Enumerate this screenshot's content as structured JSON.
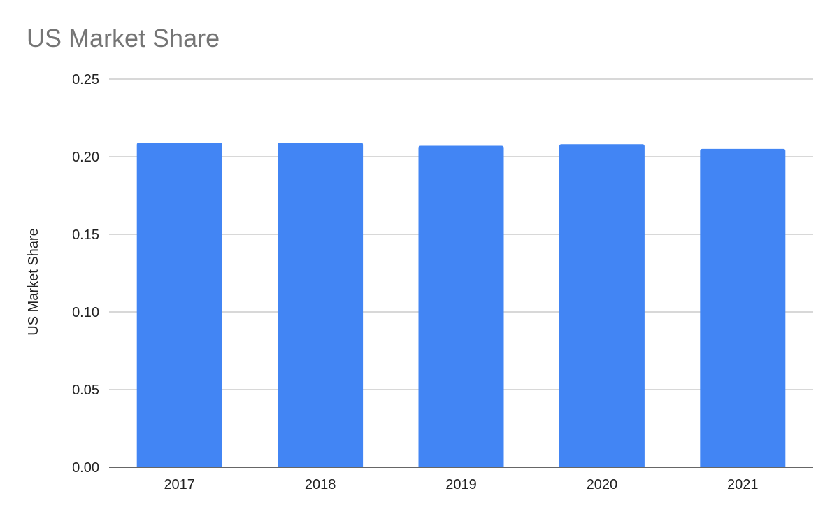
{
  "chart_data": {
    "type": "bar",
    "title": "US Market Share",
    "xlabel": "",
    "ylabel": "US Market Share",
    "categories": [
      "2017",
      "2018",
      "2019",
      "2020",
      "2021"
    ],
    "values": [
      0.209,
      0.209,
      0.207,
      0.208,
      0.205
    ],
    "ylim": [
      0,
      0.25
    ],
    "yticks": [
      "0.00",
      "0.05",
      "0.10",
      "0.15",
      "0.20",
      "0.25"
    ],
    "grid": true,
    "legend": "none",
    "bar_color": "#4285f4"
  }
}
